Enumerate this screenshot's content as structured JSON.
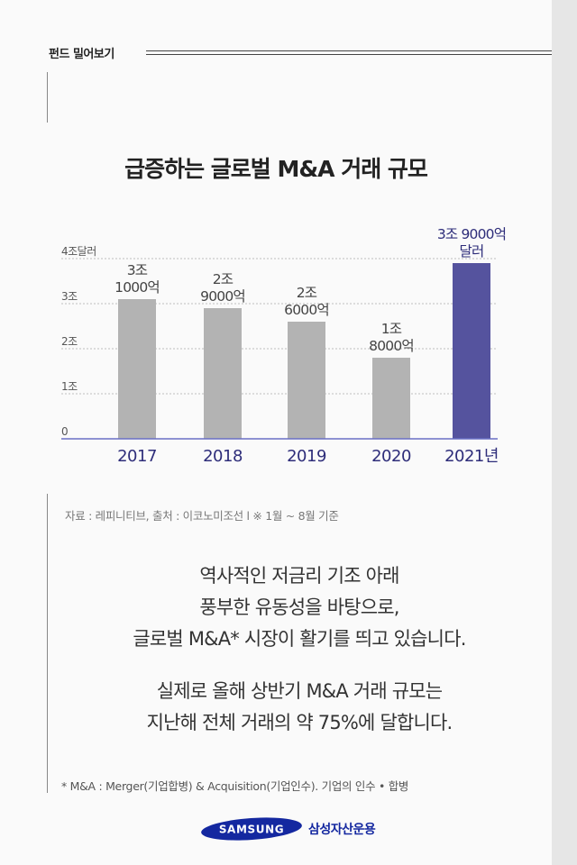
{
  "header": {
    "label": "펀드 밀어보기"
  },
  "title": "급증하는 글로벌 M&A 거래 규모",
  "source": "자료 : 레피니티브, 출처 : 이코노미조선    l    ※ 1월 ~ 8월 기준",
  "body": {
    "p1": [
      "역사적인 저금리 기조 아래",
      "풍부한 유동성을 바탕으로,",
      "글로벌 M&A* 시장이 활기를 띄고 있습니다."
    ],
    "p2": [
      "실제로 올해 상반기 M&A 거래 규모는",
      "지난해 전체 거래의 약 75%에 달합니다."
    ]
  },
  "footnote": "*   M&A : Merger(기업합병) & Acquisition(기업인수). 기업의 인수 • 합병",
  "brand": {
    "logo_text": "SAMSUNG",
    "company": "삼성자산운용"
  },
  "colors": {
    "gray_bar": "#b3b3b3",
    "highlight_bar": "#55539e",
    "axis": "#6a6fc4",
    "logo_blue": "#1428a0"
  },
  "chart_data": {
    "type": "bar",
    "title": "급증하는 글로벌 M&A 거래 규모",
    "categories": [
      "2017",
      "2018",
      "2019",
      "2020",
      "2021년"
    ],
    "values": [
      3.1,
      2.9,
      2.6,
      1.8,
      3.9
    ],
    "data_labels": [
      [
        "3조",
        "1000억"
      ],
      [
        "2조",
        "9000억"
      ],
      [
        "2조",
        "6000억"
      ],
      [
        "1조",
        "8000억"
      ],
      [
        "3조 9000억",
        "달러"
      ]
    ],
    "y_ticks": [
      {
        "value": 0,
        "label": "0"
      },
      {
        "value": 1,
        "label": "1조"
      },
      {
        "value": 2,
        "label": "2조"
      },
      {
        "value": 3,
        "label": "3조"
      },
      {
        "value": 4,
        "label": "4조달러"
      }
    ],
    "ylim": [
      0,
      4
    ],
    "grid": true,
    "highlight_index": 4
  }
}
